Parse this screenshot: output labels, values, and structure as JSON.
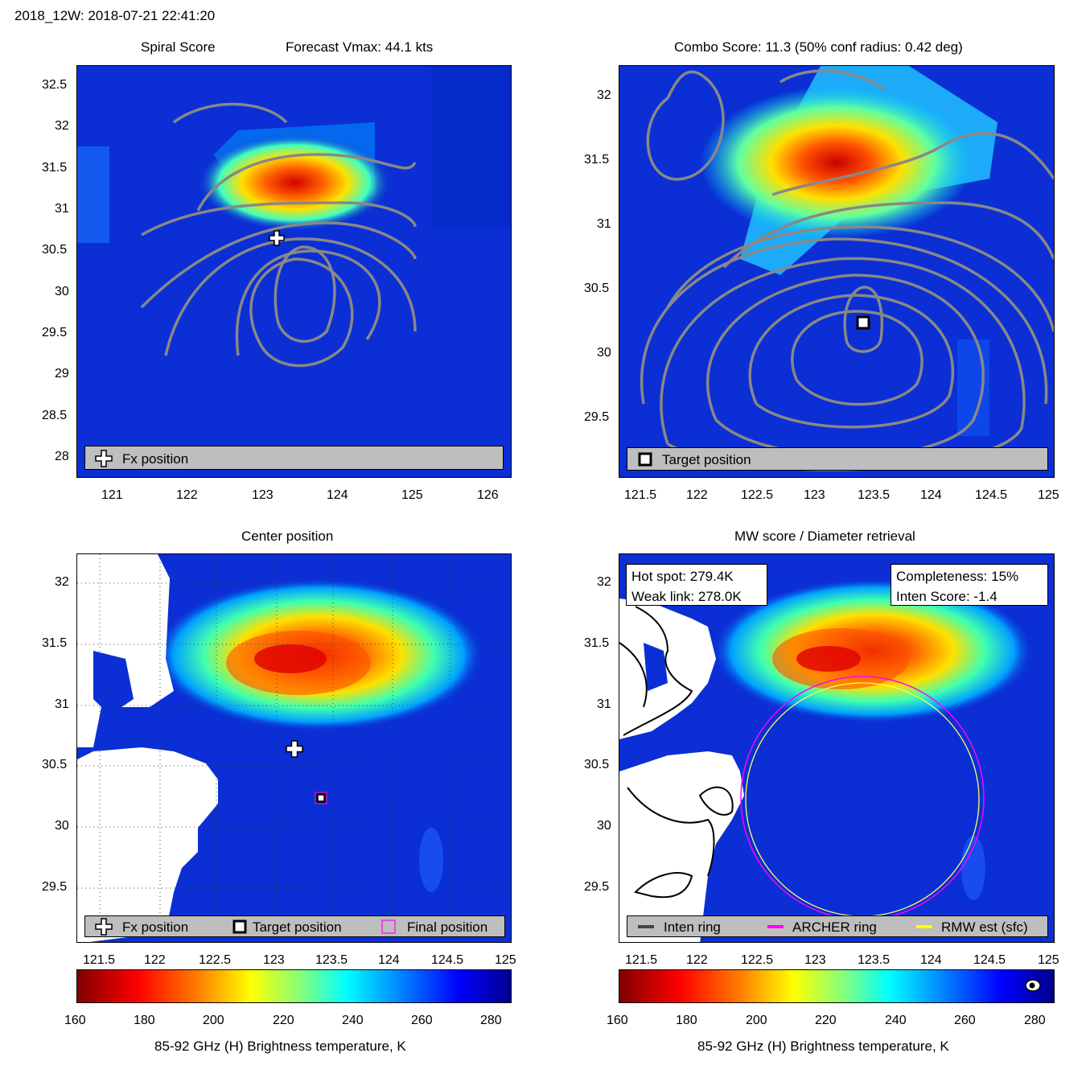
{
  "header": {
    "title": "2018_12W: 2018-07-21 22:41:20"
  },
  "panels": {
    "spiral": {
      "title_left": "Spiral Score",
      "title_right": "Forecast Vmax: 44.1 kts",
      "legend": {
        "fx_label": "Fx position"
      },
      "xticks": [
        "121",
        "122",
        "123",
        "124",
        "125",
        "126"
      ],
      "yticks": [
        "32.5",
        "32",
        "31.5",
        "31",
        "30.5",
        "30",
        "29.5",
        "29",
        "28.5",
        "28"
      ]
    },
    "combo": {
      "title": "Combo Score: 11.3  (50% conf radius: 0.42 deg)",
      "legend": {
        "target_label": "Target position"
      },
      "xticks": [
        "121.5",
        "122",
        "122.5",
        "123",
        "123.5",
        "124",
        "124.5",
        "125"
      ],
      "yticks": [
        "32",
        "31.5",
        "31",
        "30.5",
        "30",
        "29.5"
      ]
    },
    "center": {
      "title": "Center position",
      "legend": {
        "fx_label": "Fx position",
        "target_label": "Target position",
        "final_label": "Final position"
      },
      "xticks": [
        "121.5",
        "122",
        "122.5",
        "123",
        "123.5",
        "124",
        "124.5",
        "125"
      ],
      "yticks": [
        "32",
        "31.5",
        "31",
        "30.5",
        "30",
        "29.5"
      ]
    },
    "mw": {
      "title": "MW score / Diameter retrieval",
      "info_left": {
        "hot_spot": "Hot spot: 279.4K",
        "weak_link": "Weak link: 278.0K"
      },
      "info_right": {
        "completeness": "Completeness: 15%",
        "inten_score": "Inten Score: -1.4"
      },
      "legend": {
        "inten_label": "Inten ring",
        "archer_label": "ARCHER ring",
        "rmw_label": "RMW est (sfc)"
      },
      "xticks": [
        "121.5",
        "122",
        "122.5",
        "123",
        "123.5",
        "124",
        "124.5",
        "125"
      ],
      "yticks": [
        "32",
        "31.5",
        "31",
        "30.5",
        "30",
        "29.5"
      ]
    }
  },
  "colorbar": {
    "ticks": [
      "160",
      "180",
      "200",
      "220",
      "240",
      "260",
      "280"
    ],
    "label": "85-92 GHz (H) Brightness temperature, K"
  },
  "colors": {
    "ocean": "#0a2fd8",
    "archer": "#ff00ff",
    "rmw": "#ffff00",
    "contour": "#888888",
    "legend_bg": "#bebebe"
  },
  "chart_data": [
    {
      "type": "heatmap",
      "title": "Spiral Score",
      "xlim": [
        120.6,
        126.3
      ],
      "ylim": [
        27.75,
        32.75
      ],
      "series": [
        {
          "name": "Fx position",
          "x": [
            123.2
          ],
          "y": [
            30.65
          ]
        }
      ]
    },
    {
      "type": "heatmap",
      "title": "Combo Score: 11.3  (50% conf radius: 0.42 deg)",
      "xlim": [
        121.4,
        125.0
      ],
      "ylim": [
        29.05,
        32.25
      ],
      "series": [
        {
          "name": "Target position",
          "x": [
            123.4
          ],
          "y": [
            30.24
          ]
        }
      ]
    },
    {
      "type": "heatmap",
      "title": "Center position",
      "xlim": [
        121.4,
        125.0
      ],
      "ylim": [
        29.05,
        32.25
      ],
      "series": [
        {
          "name": "Fx position",
          "x": [
            123.17
          ],
          "y": [
            30.64
          ]
        },
        {
          "name": "Target position",
          "x": [
            123.4
          ],
          "y": [
            30.24
          ]
        }
      ]
    },
    {
      "type": "heatmap",
      "title": "MW score / Diameter retrieval",
      "xlim": [
        121.4,
        125.0
      ],
      "ylim": [
        29.05,
        32.25
      ],
      "series": [
        {
          "name": "ARCHER ring",
          "center_x": [
            123.4
          ],
          "center_y": [
            30.24
          ],
          "radius_deg": [
            0.88
          ]
        },
        {
          "name": "RMW est (sfc)",
          "center_x": [
            123.4
          ],
          "center_y": [
            30.24
          ],
          "radius_deg": [
            0.86
          ]
        }
      ]
    }
  ]
}
